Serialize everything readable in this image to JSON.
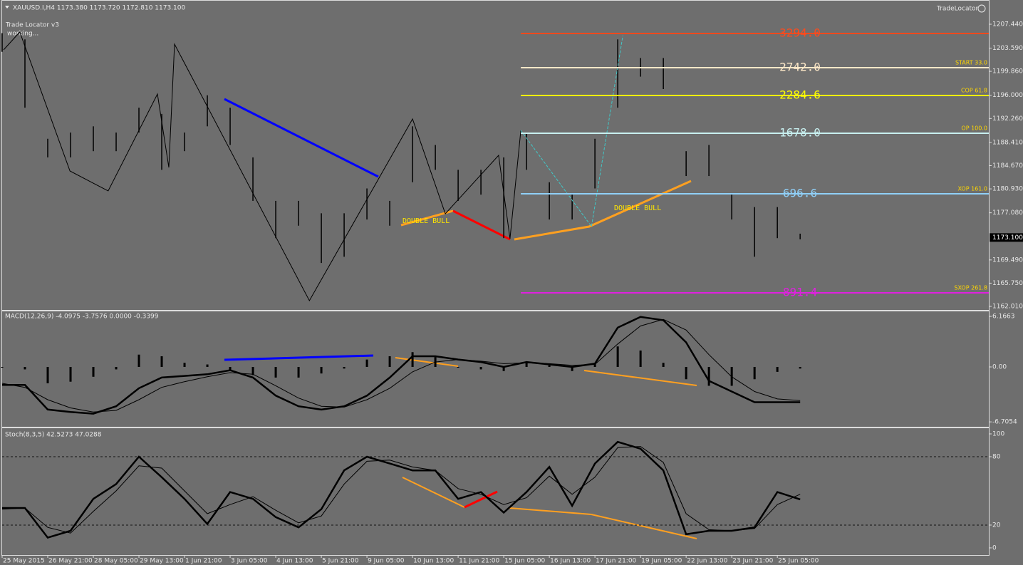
{
  "header": {
    "symbol_info": "XAUUSD.I,H4  1173.380 1173.720 1172.810 1173.100",
    "indicator_name": "Trade Locator v3",
    "status": "working...",
    "brand": "TradeLocator",
    "annotations": [
      "DOUBLE BULL",
      "DOUBLE BULL"
    ]
  },
  "chart_data": [
    {
      "type": "ohlc",
      "xlim": [
        0,
        173.1
      ],
      "ylim": [
        1161.44,
        1211.34
      ],
      "yticks": [
        {
          "value": 1207.44,
          "label": "1207.440"
        },
        {
          "value": 1203.59,
          "label": "1203.590"
        },
        {
          "value": 1199.86,
          "label": "1199.860"
        },
        {
          "value": 1196.0,
          "label": "1196.000"
        },
        {
          "value": 1192.26,
          "label": "1192.260"
        },
        {
          "value": 1188.41,
          "label": "1188.410"
        },
        {
          "value": 1184.67,
          "label": "1184.670"
        },
        {
          "value": 1180.93,
          "label": "1180.930"
        },
        {
          "value": 1177.08,
          "label": "1177.080"
        },
        {
          "value": 1169.49,
          "label": "1169.490"
        },
        {
          "value": 1165.75,
          "label": "1165.750"
        },
        {
          "value": 1162.01,
          "label": "1162.010"
        }
      ],
      "last_price": {
        "value": 1173.1,
        "label": "1173.100"
      },
      "bar_x": [
        0,
        4,
        8,
        12,
        16,
        20,
        24,
        28,
        32,
        36,
        40,
        44,
        48,
        52,
        56,
        60,
        64,
        68,
        72,
        76,
        80,
        84,
        88,
        92,
        96,
        100,
        104,
        108,
        112,
        116,
        120,
        124,
        128,
        132,
        136,
        140
      ],
      "high": [
        1206,
        1205,
        1189,
        1190,
        1191,
        1190,
        1194,
        1193,
        1190,
        1196,
        1194,
        1186,
        1179,
        1179,
        1177,
        1177,
        1181,
        1179,
        1191,
        1188,
        1184,
        1184,
        1186,
        1190,
        1182,
        1180,
        1189,
        1205,
        1202,
        1202,
        1187,
        1188,
        1180,
        1178,
        1178,
        1173.72
      ],
      "low": [
        1203,
        1194,
        1186,
        1186,
        1187,
        1187,
        1190,
        1184,
        1187,
        1191,
        1188,
        1179,
        1173,
        1175,
        1169,
        1170,
        1176,
        1175,
        1182,
        1184,
        1179,
        1180,
        1173,
        1184,
        1176,
        1176,
        1181,
        1194,
        1199,
        1197,
        1183,
        1183,
        1176,
        1170,
        1173,
        1172.81
      ],
      "zigzag": {
        "color": "#000000",
        "x": [
          0.25,
          3.1,
          11.9,
          18.6,
          27.25,
          29.25,
          30.25,
          53.9,
          72,
          77.75,
          87.1,
          89.1,
          91
        ],
        "price": [
          1203.31,
          1206.18,
          1183.81,
          1180.6,
          1196.2,
          1184.38,
          1204.23,
          1162.93,
          1192.18,
          1176.93,
          1186.33,
          1172.91,
          1190.35
        ]
      },
      "wave": {
        "color": "#40c8c8",
        "x": [
          91,
          103.4,
          108.9
        ],
        "price": [
          1190.35,
          1174.87,
          1205.6
        ]
      },
      "levels": [
        {
          "text": "3294.0",
          "price": 1205.95,
          "color": "#ff4a1c"
        },
        {
          "text": "2742.0",
          "price": 1200.44,
          "color": "#fde8c8",
          "tag": "START 33.0"
        },
        {
          "text": "2284.6",
          "price": 1195.97,
          "color": "#ffff00",
          "tag": "COP 61.8"
        },
        {
          "text": "1678.0",
          "price": 1189.89,
          "color": "#c8f0f0",
          "tag": "OP 100.0"
        },
        {
          "text": "696.6",
          "price": 1180.14,
          "color": "#90d0f8",
          "tag": "XOP 161.0"
        },
        {
          "text": "891.4",
          "price": 1164.19,
          "color": "#e020e0",
          "tag": "SXOP 261.8"
        }
      ]
    },
    {
      "type": "macd",
      "title": "MACD(12,26,9) -4.0975 -3.7576 0.0000 -0.3399",
      "ylim": [
        -7.39,
        6.78
      ],
      "yticks": [
        6.1663,
        {
          "value": 0,
          "label": "0.00"
        },
        -6.7054
      ],
      "x": [
        0,
        4,
        8,
        12,
        16,
        20,
        24,
        28,
        32,
        36,
        40,
        44,
        48,
        52,
        56,
        60,
        64,
        68,
        72,
        76,
        80,
        84,
        88,
        92,
        96,
        100,
        104,
        108,
        112,
        116,
        120,
        124,
        128,
        132,
        136,
        140
      ],
      "histogram": [
        0,
        -0.3,
        -2,
        -1.8,
        -1.2,
        -0.3,
        1.5,
        1.3,
        0.5,
        0.3,
        -0.5,
        -1,
        -1.3,
        -1.3,
        -0.8,
        -0.2,
        0.9,
        1.3,
        1.8,
        1.2,
        0,
        -0.3,
        -0.5,
        0.6,
        0.2,
        -0.5,
        0.5,
        2.5,
        2,
        0.5,
        -1.5,
        -2.3,
        -2.3,
        -1.5,
        -0.6,
        -0.2
      ],
      "series": [
        {
          "color": "#000000",
          "values": [
            -2.2,
            -2.2,
            -5.2,
            -5.5,
            -5.7,
            -4.8,
            -2.6,
            -1.3,
            -1.1,
            -0.9,
            -0.4,
            -1.3,
            -3.5,
            -4.8,
            -5.2,
            -4.8,
            -3.5,
            -1.3,
            1.3,
            1.3,
            0.9,
            0.6,
            0,
            0.6,
            0.3,
            0,
            0.4,
            4.8,
            6.1,
            5.7,
            3,
            -1.7,
            -3,
            -4.3,
            -4.3,
            -4.3
          ]
        },
        {
          "color": "#000000",
          "values": [
            -2,
            -2.5,
            -4,
            -5,
            -5.5,
            -5.3,
            -4,
            -2.5,
            -1.8,
            -1.2,
            -0.7,
            -0.9,
            -2.3,
            -3.8,
            -4.8,
            -4.9,
            -4,
            -2.6,
            -0.6,
            0.6,
            0.9,
            0.7,
            0.4,
            0.5,
            0.4,
            0.2,
            0.3,
            2.8,
            5,
            5.8,
            4.5,
            1.5,
            -1.2,
            -3,
            -3.9,
            -4.1
          ]
        }
      ]
    },
    {
      "type": "stoch",
      "title": "Stoch(8,3,5) 42.5273 47.0288",
      "ylim": [
        -6.9,
        105
      ],
      "yticks": [
        0,
        20,
        80,
        100
      ],
      "dashed_levels": [
        20,
        80
      ],
      "x": [
        0,
        4,
        8,
        12,
        16,
        20,
        24,
        28,
        32,
        36,
        40,
        44,
        48,
        52,
        56,
        60,
        64,
        68,
        72,
        76,
        80,
        84,
        88,
        92,
        96,
        100,
        104,
        108,
        112,
        116,
        120,
        124,
        128,
        132,
        136,
        140
      ],
      "series": [
        {
          "color": "#000000",
          "values": [
            35,
            35,
            9,
            15,
            43,
            56,
            80,
            62,
            43,
            21,
            49,
            43,
            27,
            18,
            34,
            68,
            80,
            74,
            68,
            68,
            43,
            49,
            31,
            49,
            71,
            37,
            74,
            93,
            87,
            68,
            12,
            15,
            15,
            18,
            49,
            42.5273
          ]
        },
        {
          "color": "#000000",
          "values": [
            34,
            35,
            18,
            13,
            32,
            50,
            72,
            70,
            50,
            30,
            38,
            45,
            33,
            22,
            28,
            56,
            76,
            77,
            71,
            68,
            52,
            47,
            38,
            44,
            63,
            47,
            62,
            88,
            89,
            75,
            30,
            16,
            15,
            17,
            38,
            47.0288
          ]
        }
      ],
      "xticks": [
        {
          "value": 0,
          "label": "25 May 2015"
        },
        {
          "value": 8,
          "label": "26 May 21:00"
        },
        {
          "value": 16,
          "label": "28 May 05:00"
        },
        {
          "value": 24,
          "label": "29 May 13:00"
        },
        {
          "value": 32,
          "label": "1 Jun 21:00"
        },
        {
          "value": 40,
          "label": "3 Jun 05:00"
        },
        {
          "value": 48,
          "label": "4 Jun 13:00"
        },
        {
          "value": 56,
          "label": "5 Jun 21:00"
        },
        {
          "value": 64,
          "label": "9 Jun 05:00"
        },
        {
          "value": 72,
          "label": "10 Jun 13:00"
        },
        {
          "value": 80,
          "label": "11 Jun 21:00"
        },
        {
          "value": 88,
          "label": "15 Jun 05:00"
        },
        {
          "value": 96,
          "label": "16 Jun 13:00"
        },
        {
          "value": 104,
          "label": "17 Jun 21:00"
        },
        {
          "value": 112,
          "label": "19 Jun 05:00"
        },
        {
          "value": 120,
          "label": "22 Jun 13:00"
        },
        {
          "value": 128,
          "label": "23 Jun 21:00"
        },
        {
          "value": 136,
          "label": "25 Jun 05:00"
        }
      ]
    }
  ]
}
